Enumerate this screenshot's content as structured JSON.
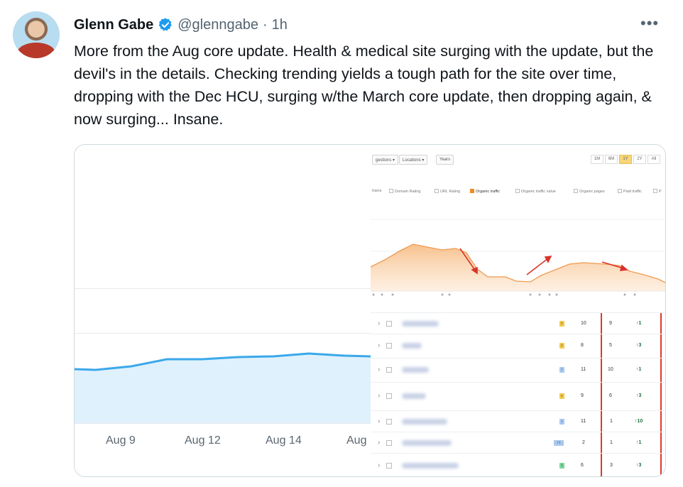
{
  "tweet": {
    "author": {
      "name": "Glenn Gabe",
      "handle": "@glenngabe",
      "separator": "·",
      "time": "1h",
      "verified": true
    },
    "more_icon": "more-icon",
    "more_glyph": "•••",
    "text": "More from the Aug core update. Health & medical site surging with the update, but the devil's in the details. Checking trending yields a tough path for the site over time, dropping with the Dec HCU, surging w/the March core update, then dropping again, & now surging... Insane."
  },
  "media": {
    "left_chart": {
      "type": "area",
      "x_ticks": [
        "Aug 9",
        "Aug 12",
        "Aug 14",
        "Aug"
      ],
      "line_color": "#3ba8ea",
      "fill_color": "#dff1fc"
    },
    "right_screenshot": {
      "toolbar": [
        "gestions ▾",
        "Locations ▾",
        "Years"
      ],
      "periods": [
        "1M",
        "6M",
        "1Y",
        "2Y",
        "All"
      ],
      "active_period": "1Y",
      "metrics": [
        "trains",
        "Domain Rating",
        "URL Rating",
        "Organic traffic",
        "Organic traffic value",
        "Organic pages",
        "Paid traffic",
        "P"
      ],
      "checked_metric": "Organic traffic",
      "area_color": "#f6b77a",
      "arrow_color": "#d9332b",
      "rows": [
        {
          "badge": "c",
          "badge_color": "#f2c94c",
          "c1": "10",
          "c2": "9",
          "c3": "↑1"
        },
        {
          "badge": "c",
          "badge_color": "#f2c94c",
          "c1": "8",
          "c2": "5",
          "c3": "↑3"
        },
        {
          "badge": "i",
          "badge_color": "#a9c8ef",
          "c1": "11",
          "c2": "10",
          "c3": "↑1"
        },
        {
          "badge": "c",
          "badge_color": "#f2c94c",
          "c1": "9",
          "c2": "6",
          "c3": "↑3"
        },
        {
          "badge": "i",
          "badge_color": "#a9c8ef",
          "c1": "11",
          "c2": "1",
          "c3": "↑10"
        },
        {
          "badge": "i t",
          "badge_color": "#a9c8ef",
          "c1": "2",
          "c2": "1",
          "c3": "↑1"
        },
        {
          "badge": "t",
          "badge_color": "#7ed69b",
          "c1": "6",
          "c2": "3",
          "c3": "↑3"
        }
      ]
    }
  }
}
